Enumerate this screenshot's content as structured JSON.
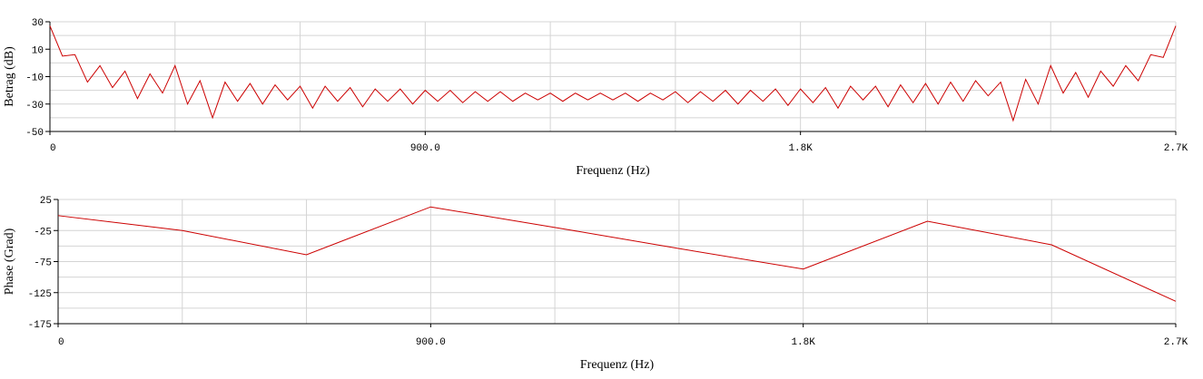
{
  "chart_data": [
    {
      "type": "line",
      "x_label": "Frequenz (Hz)",
      "y_label": "Betrag (dB)",
      "x": [
        0,
        30,
        60,
        90,
        120,
        150,
        180,
        210,
        240,
        270,
        300,
        330,
        360,
        390,
        420,
        450,
        480,
        510,
        540,
        570,
        600,
        630,
        660,
        690,
        720,
        750,
        780,
        810,
        840,
        870,
        900,
        930,
        960,
        990,
        1020,
        1050,
        1080,
        1110,
        1140,
        1170,
        1200,
        1230,
        1260,
        1290,
        1320,
        1350,
        1380,
        1410,
        1440,
        1470,
        1500,
        1530,
        1560,
        1590,
        1620,
        1650,
        1680,
        1710,
        1740,
        1770,
        1800,
        1830,
        1860,
        1890,
        1920,
        1950,
        1980,
        2010,
        2040,
        2070,
        2100,
        2130,
        2160,
        2190,
        2220,
        2250,
        2280,
        2310,
        2340,
        2370,
        2400,
        2430,
        2460,
        2490,
        2520,
        2550,
        2580,
        2610,
        2640,
        2670,
        2700
      ],
      "series": [
        {
          "color": "#cc0000",
          "values": [
            27,
            5,
            6,
            -14,
            -2,
            -18,
            -6,
            -26,
            -8,
            -22,
            -2,
            -30,
            -13,
            -40,
            -14,
            -28,
            -15,
            -30,
            -16,
            -27,
            -17,
            -33,
            -17,
            -28,
            -18,
            -32,
            -19,
            -28,
            -19,
            -30,
            -20,
            -28,
            -20,
            -29,
            -21,
            -28,
            -21,
            -28,
            -22,
            -27,
            -22,
            -28,
            -22,
            -27,
            -22,
            -27,
            -22,
            -28,
            -22,
            -27,
            -21,
            -29,
            -21,
            -28,
            -20,
            -30,
            -20,
            -28,
            -19,
            -31,
            -19,
            -29,
            -18,
            -33,
            -17,
            -27,
            -17,
            -32,
            -16,
            -29,
            -15,
            -30,
            -14,
            -28,
            -13,
            -24,
            -14,
            -42,
            -12,
            -30,
            -2,
            -22,
            -7,
            -25,
            -6,
            -17,
            -2,
            -13,
            6,
            4,
            27
          ]
        }
      ],
      "xlim": [
        0,
        2700
      ],
      "ylim": [
        -50,
        30
      ],
      "xticks": [
        0,
        {
          "value": 900,
          "label": "900.0"
        },
        {
          "value": 1800,
          "label": "1.8K"
        },
        {
          "value": 2700,
          "label": "2.7K"
        }
      ],
      "yticks": [
        30,
        10,
        -10,
        -30,
        -50
      ],
      "xgrid": [
        0,
        300,
        600,
        900,
        1200,
        1500,
        1800,
        2100,
        2400,
        2700
      ],
      "ygrid": [
        30,
        20,
        10,
        0,
        -10,
        -20,
        -30,
        -40,
        -50
      ]
    },
    {
      "type": "line",
      "x_label": "Frequenz (Hz)",
      "y_label": "Phase (Grad)",
      "x": [
        0,
        300,
        600,
        900,
        1200,
        1500,
        1800,
        2100,
        2400,
        2700
      ],
      "series": [
        {
          "color": "#cc0000",
          "values": [
            -1,
            -25,
            -64,
            13,
            -20,
            -54,
            -87,
            -10,
            -48,
            -139
          ]
        }
      ],
      "xlim": [
        0,
        2700
      ],
      "ylim": [
        -175,
        25
      ],
      "xticks": [
        0,
        {
          "value": 900,
          "label": "900.0"
        },
        {
          "value": 1800,
          "label": "1.8K"
        },
        {
          "value": 2700,
          "label": "2.7K"
        }
      ],
      "yticks": [
        25,
        -25,
        -75,
        -125,
        -175
      ],
      "xgrid": [
        0,
        300,
        600,
        900,
        1200,
        1500,
        1800,
        2100,
        2400,
        2700
      ],
      "ygrid": [
        25,
        0,
        -25,
        -50,
        -75,
        -100,
        -125,
        -150,
        -175
      ]
    }
  ]
}
